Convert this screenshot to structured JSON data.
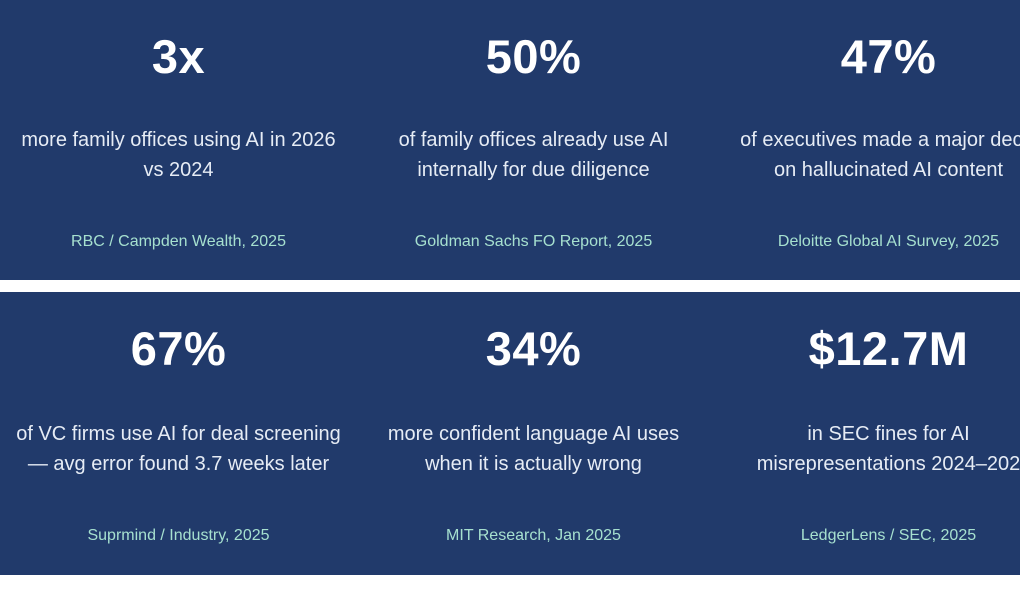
{
  "stats_top": [
    {
      "value": "3x",
      "desc_line1": "more family offices using AI in 2026",
      "desc_line2": "vs 2024",
      "source": "RBC / Campden Wealth, 2025"
    },
    {
      "value": "50%",
      "desc_line1": "of family offices already use AI",
      "desc_line2": "internally for due diligence",
      "source": "Goldman Sachs FO Report, 2025"
    },
    {
      "value": "47%",
      "desc_line1": "of executives made a major decis",
      "desc_line2": "on hallucinated AI content",
      "source": "Deloitte Global AI Survey, 2025"
    }
  ],
  "stats_bottom": [
    {
      "value": "67%",
      "desc_line1": "of VC firms use AI for deal screening",
      "desc_line2": "— avg error found 3.7 weeks later",
      "source": "Suprmind / Industry, 2025"
    },
    {
      "value": "34%",
      "desc_line1": "more confident language AI uses",
      "desc_line2": "when it is actually wrong",
      "source": "MIT Research, Jan 2025"
    },
    {
      "value": "$12.7M",
      "desc_line1": "in SEC fines for AI",
      "desc_line2": "misrepresentations 2024–202",
      "source": "LedgerLens / SEC, 2025"
    }
  ],
  "colors": {
    "band_background": "#213a6b",
    "value_text": "#ffffff",
    "desc_text": "#e6ecf5",
    "source_text": "#a6e0cf",
    "page_background": "#ffffff"
  }
}
